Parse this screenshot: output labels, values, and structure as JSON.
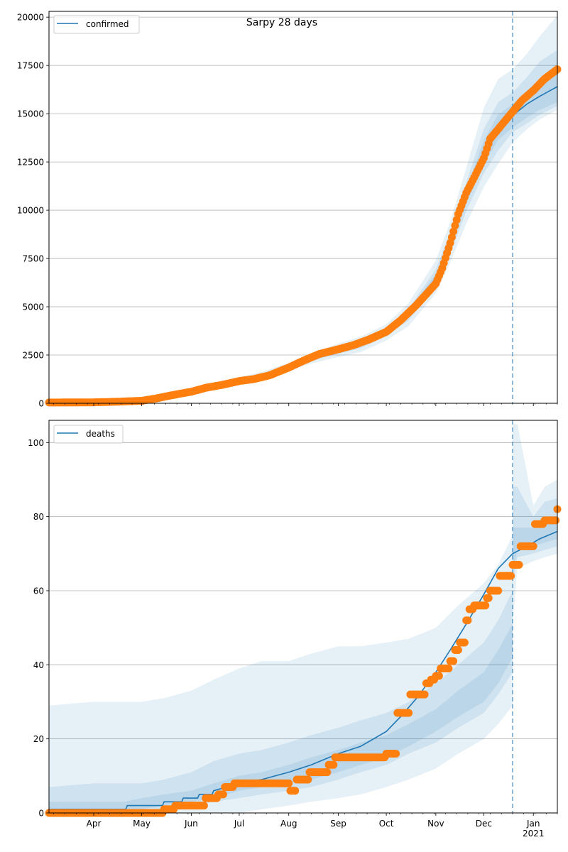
{
  "chart_data": [
    {
      "type": "line",
      "title": "Sarpy 28 days",
      "legend": {
        "label": "confirmed",
        "placement": "top-left"
      },
      "xlabel": "",
      "ylabel": "",
      "ylim": [
        0,
        20300
      ],
      "yticks": [
        0,
        2500,
        5000,
        7500,
        10000,
        12500,
        15000,
        17500,
        20000
      ],
      "ytick_labels": [
        "0",
        "2500",
        "5000",
        "7500",
        "10000",
        "12500",
        "15000",
        "17500",
        "20000"
      ],
      "grid": "horizontal",
      "forecast_start": "2020-12-19",
      "x_range": [
        "2020-03-04",
        "2021-01-16"
      ],
      "model_line": {
        "name": "confirmed",
        "x": [
          "2020-03-04",
          "2020-04-01",
          "2020-04-20",
          "2020-05-01",
          "2020-05-15",
          "2020-06-01",
          "2020-06-15",
          "2020-07-01",
          "2020-07-15",
          "2020-08-01",
          "2020-08-15",
          "2020-09-01",
          "2020-09-15",
          "2020-10-01",
          "2020-10-15",
          "2020-11-01",
          "2020-11-10",
          "2020-11-20",
          "2020-12-01",
          "2020-12-10",
          "2020-12-19",
          "2020-12-28",
          "2021-01-05",
          "2021-01-16"
        ],
        "y": [
          40,
          50,
          70,
          120,
          350,
          650,
          950,
          1200,
          1450,
          1900,
          2300,
          2750,
          3050,
          3700,
          4600,
          6500,
          8300,
          10700,
          13000,
          14300,
          14900,
          15500,
          15900,
          16400
        ]
      },
      "bands": [
        {
          "level": "outer",
          "upper": [
            60,
            70,
            100,
            160,
            420,
            750,
            1080,
            1350,
            1620,
            2100,
            2550,
            3100,
            3450,
            4100,
            5200,
            7400,
            9400,
            12200,
            15300,
            16800,
            17300,
            18100,
            19000,
            20100
          ],
          "lower": [
            20,
            30,
            40,
            80,
            280,
            550,
            820,
            1050,
            1280,
            1700,
            2050,
            2400,
            2650,
            3250,
            4000,
            5700,
            7300,
            9300,
            11200,
            12400,
            13500,
            14200,
            14700,
            15200
          ]
        },
        {
          "level": "middle",
          "upper": [
            50,
            60,
            85,
            140,
            390,
            700,
            1020,
            1280,
            1540,
            2000,
            2430,
            2930,
            3250,
            3900,
            4900,
            6950,
            8850,
            11450,
            14200,
            15600,
            16100,
            16900,
            17700,
            18300
          ],
          "lower": [
            30,
            40,
            55,
            100,
            310,
            600,
            880,
            1120,
            1360,
            1800,
            2170,
            2570,
            2850,
            3500,
            4300,
            6050,
            7750,
            9950,
            11900,
            13100,
            14050,
            14500,
            14950,
            15400
          ]
        },
        {
          "level": "inner",
          "upper": [
            45,
            55,
            78,
            130,
            370,
            675,
            985,
            1240,
            1495,
            1950,
            2365,
            2840,
            3150,
            3800,
            4750,
            6720,
            8570,
            11070,
            13600,
            14950,
            15500,
            16200,
            16800,
            17300
          ],
          "lower": [
            35,
            45,
            62,
            110,
            330,
            625,
            915,
            1160,
            1405,
            1850,
            2235,
            2660,
            2950,
            3600,
            4450,
            6280,
            8030,
            10330,
            12400,
            13650,
            14300,
            14800,
            15200,
            15600
          ]
        }
      ],
      "observed": {
        "name": "observed",
        "x": [
          "2020-03-04",
          "2020-03-20",
          "2020-04-01",
          "2020-04-15",
          "2020-05-01",
          "2020-05-10",
          "2020-05-20",
          "2020-06-01",
          "2020-06-10",
          "2020-06-20",
          "2020-07-01",
          "2020-07-10",
          "2020-07-20",
          "2020-08-01",
          "2020-08-10",
          "2020-08-20",
          "2020-09-01",
          "2020-09-10",
          "2020-09-20",
          "2020-10-01",
          "2020-10-10",
          "2020-10-20",
          "2020-11-01",
          "2020-11-05",
          "2020-11-10",
          "2020-11-15",
          "2020-11-20",
          "2020-11-25",
          "2020-12-01",
          "2020-12-05",
          "2020-12-10",
          "2020-12-15",
          "2020-12-19",
          "2020-12-25",
          "2021-01-01",
          "2021-01-08",
          "2021-01-16"
        ],
        "y": [
          40,
          45,
          50,
          80,
          130,
          250,
          420,
          600,
          800,
          950,
          1150,
          1250,
          1450,
          1850,
          2200,
          2550,
          2800,
          3000,
          3300,
          3700,
          4300,
          5100,
          6200,
          7000,
          8300,
          9800,
          10900,
          11700,
          12700,
          13700,
          14200,
          14700,
          15100,
          15700,
          16200,
          16800,
          17300
        ]
      }
    },
    {
      "type": "line",
      "title": "",
      "legend": {
        "label": "deaths",
        "placement": "top-left"
      },
      "xlabel": "",
      "ylabel": "",
      "ylim": [
        0,
        106
      ],
      "yticks": [
        0,
        20,
        40,
        60,
        80,
        100
      ],
      "ytick_labels": [
        "0",
        "20",
        "40",
        "60",
        "80",
        "100"
      ],
      "xticks": [
        "2020-04-01",
        "2020-05-01",
        "2020-06-01",
        "2020-07-01",
        "2020-08-01",
        "2020-09-01",
        "2020-10-01",
        "2020-11-01",
        "2020-12-01",
        "2021-01-01"
      ],
      "xtick_labels": [
        "Apr",
        "May",
        "Jun",
        "Jul",
        "Aug",
        "Sep",
        "Oct",
        "Nov",
        "Dec",
        "Jan\n2021"
      ],
      "grid": "horizontal",
      "forecast_start": "2020-12-19",
      "x_range": [
        "2020-03-04",
        "2021-01-16"
      ],
      "model_line": {
        "name": "deaths",
        "x": [
          "2020-03-04",
          "2020-04-21",
          "2020-04-22",
          "2020-05-14",
          "2020-05-15",
          "2020-05-26",
          "2020-05-27",
          "2020-06-05",
          "2020-06-06",
          "2020-06-14",
          "2020-06-15",
          "2020-07-01",
          "2020-07-15",
          "2020-08-01",
          "2020-08-15",
          "2020-09-01",
          "2020-09-15",
          "2020-10-01",
          "2020-10-10",
          "2020-10-20",
          "2020-11-01",
          "2020-11-10",
          "2020-11-20",
          "2020-12-01",
          "2020-12-10",
          "2020-12-19",
          "2020-12-28",
          "2021-01-05",
          "2021-01-16"
        ],
        "y": [
          1,
          1,
          2,
          2,
          3,
          3,
          4,
          4,
          5,
          5,
          6,
          8,
          9,
          11,
          13,
          16,
          18,
          22,
          26,
          31,
          38,
          44,
          51,
          59,
          66,
          70,
          72,
          74,
          76
        ]
      },
      "bands": [
        {
          "level": "outer",
          "upper": [
            29,
            30,
            30,
            30,
            31,
            33,
            36,
            39,
            41,
            41,
            43,
            45,
            45,
            46,
            47,
            50,
            56,
            62,
            67,
            75,
            85,
            93,
            100,
            105,
            105,
            83,
            88,
            90
          ],
          "lower": [
            0,
            0,
            0,
            0,
            0,
            0,
            0,
            0,
            1,
            2,
            3,
            4,
            5,
            7,
            9,
            12,
            16,
            20,
            24,
            29,
            34,
            40,
            46,
            51,
            66,
            68,
            69,
            70
          ]
        },
        {
          "level": "middle",
          "upper": [
            7,
            8,
            8,
            8,
            9,
            11,
            14,
            16,
            17,
            19,
            21,
            23,
            25,
            27,
            30,
            35,
            40,
            46,
            52,
            60,
            68,
            76,
            82,
            88,
            88,
            80,
            84,
            85
          ],
          "lower": [
            0,
            0,
            0,
            1,
            1,
            2,
            3,
            4,
            5,
            6,
            7,
            9,
            11,
            13,
            16,
            19,
            23,
            27,
            32,
            38,
            44,
            50,
            57,
            62,
            69,
            70,
            71,
            72
          ]
        },
        {
          "level": "inner",
          "upper": [
            3,
            3,
            3,
            4,
            5,
            6,
            8,
            10,
            11,
            13,
            15,
            17,
            19,
            21,
            24,
            28,
            33,
            38,
            44,
            51,
            58,
            65,
            72,
            77,
            77,
            77,
            79,
            80
          ],
          "lower": [
            0,
            0,
            0,
            1,
            2,
            3,
            4,
            6,
            7,
            8,
            9,
            11,
            13,
            15,
            18,
            22,
            26,
            30,
            35,
            42,
            48,
            54,
            61,
            65,
            71,
            72,
            73,
            74
          ]
        }
      ],
      "bands_x": [
        "2020-03-04",
        "2020-04-01",
        "2020-04-20",
        "2020-05-01",
        "2020-05-15",
        "2020-06-01",
        "2020-06-15",
        "2020-07-01",
        "2020-07-15",
        "2020-08-01",
        "2020-08-15",
        "2020-09-01",
        "2020-09-15",
        "2020-10-01",
        "2020-10-15",
        "2020-11-01",
        "2020-11-15",
        "2020-12-01",
        "2020-12-10",
        "2020-12-19",
        "2020-12-19",
        "2020-12-19",
        "2020-12-19",
        "2020-12-19",
        "2020-12-22",
        "2021-01-01",
        "2021-01-08",
        "2021-01-16"
      ],
      "observed": {
        "name": "observed",
        "x": [
          "2020-03-04",
          "2020-03-15",
          "2020-03-25",
          "2020-04-05",
          "2020-04-15",
          "2020-04-25",
          "2020-05-05",
          "2020-05-10",
          "2020-05-15",
          "2020-05-18",
          "2020-05-22",
          "2020-05-26",
          "2020-05-30",
          "2020-06-03",
          "2020-06-07",
          "2020-06-10",
          "2020-06-14",
          "2020-06-18",
          "2020-06-22",
          "2020-06-28",
          "2020-07-05",
          "2020-07-12",
          "2020-07-20",
          "2020-07-28",
          "2020-07-31",
          "2020-08-02",
          "2020-08-06",
          "2020-08-10",
          "2020-08-14",
          "2020-08-18",
          "2020-08-22",
          "2020-08-26",
          "2020-08-30",
          "2020-09-05",
          "2020-09-12",
          "2020-09-20",
          "2020-09-25",
          "2020-09-28",
          "2020-10-01",
          "2020-10-05",
          "2020-10-08",
          "2020-10-12",
          "2020-10-16",
          "2020-10-20",
          "2020-10-23",
          "2020-10-26",
          "2020-10-29",
          "2020-11-01",
          "2020-11-04",
          "2020-11-07",
          "2020-11-10",
          "2020-11-13",
          "2020-11-16",
          "2020-11-19",
          "2020-11-20",
          "2020-11-22",
          "2020-11-25",
          "2020-11-28",
          "2020-11-30",
          "2020-12-01",
          "2020-12-03",
          "2020-12-05",
          "2020-12-08",
          "2020-12-11",
          "2020-12-14",
          "2020-12-16",
          "2020-12-19",
          "2020-12-22",
          "2020-12-24",
          "2020-12-27",
          "2020-12-30",
          "2021-01-02",
          "2021-01-05",
          "2021-01-08",
          "2021-01-11",
          "2021-01-14",
          "2021-01-16"
        ],
        "y": [
          0,
          0,
          0,
          0,
          0,
          0,
          0,
          0,
          1,
          1,
          2,
          2,
          2,
          2,
          2,
          4,
          4,
          5,
          7,
          8,
          8,
          8,
          8,
          8,
          8,
          6,
          9,
          9,
          11,
          11,
          11,
          13,
          15,
          15,
          15,
          15,
          15,
          15,
          16,
          16,
          27,
          27,
          32,
          32,
          32,
          35,
          36,
          37,
          39,
          39,
          41,
          44,
          46,
          46,
          52,
          55,
          56,
          56,
          56,
          56,
          58,
          60,
          60,
          64,
          64,
          64,
          67,
          67,
          72,
          72,
          72,
          78,
          78,
          79,
          79,
          79,
          82
        ]
      }
    }
  ]
}
